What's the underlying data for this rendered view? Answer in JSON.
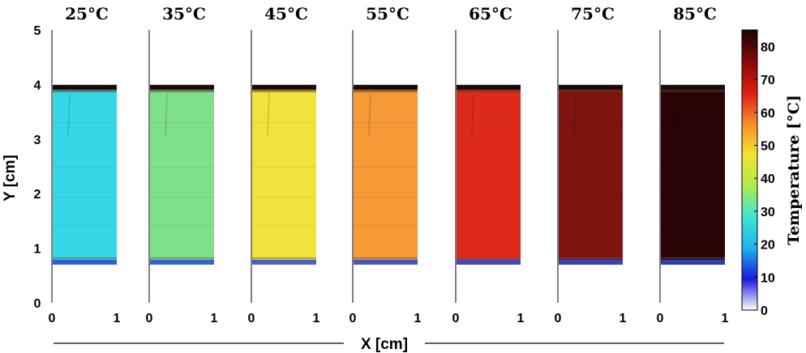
{
  "chart_data": {
    "type": "heatmap",
    "panels": [
      {
        "title": "25°C",
        "temperature": 25,
        "color": "#36d8e6"
      },
      {
        "title": "35°C",
        "temperature": 35,
        "color": "#7fe08a"
      },
      {
        "title": "45°C",
        "temperature": 45,
        "color": "#f2e23c"
      },
      {
        "title": "55°C",
        "temperature": 55,
        "color": "#f59a36"
      },
      {
        "title": "65°C",
        "temperature": 65,
        "color": "#de2a1c"
      },
      {
        "title": "75°C",
        "temperature": 75,
        "color": "#7d1410"
      },
      {
        "title": "85°C",
        "temperature": 85,
        "color": "#2a0404"
      }
    ],
    "strip_extent": {
      "x": [
        0,
        1
      ],
      "y": [
        0.7,
        3.95
      ]
    },
    "xlim": [
      0,
      1
    ],
    "ylim": [
      0,
      5
    ],
    "x_ticks": [
      "0",
      "1"
    ],
    "y_ticks": [
      "0",
      "1",
      "2",
      "3",
      "4",
      "5"
    ],
    "xlabel": "X [cm]",
    "ylabel": "Y [cm]",
    "colorbar": {
      "label": "Temperature [°C]",
      "range": [
        0,
        85
      ],
      "ticks": [
        "0",
        "10",
        "20",
        "30",
        "40",
        "50",
        "60",
        "70",
        "80"
      ],
      "colors": [
        "#ffffff",
        "#1a1adc",
        "#1fb2ee",
        "#3ee6d0",
        "#aeea50",
        "#f5e22e",
        "#f58c2c",
        "#dc1e14",
        "#820a08",
        "#1c0202"
      ]
    }
  }
}
